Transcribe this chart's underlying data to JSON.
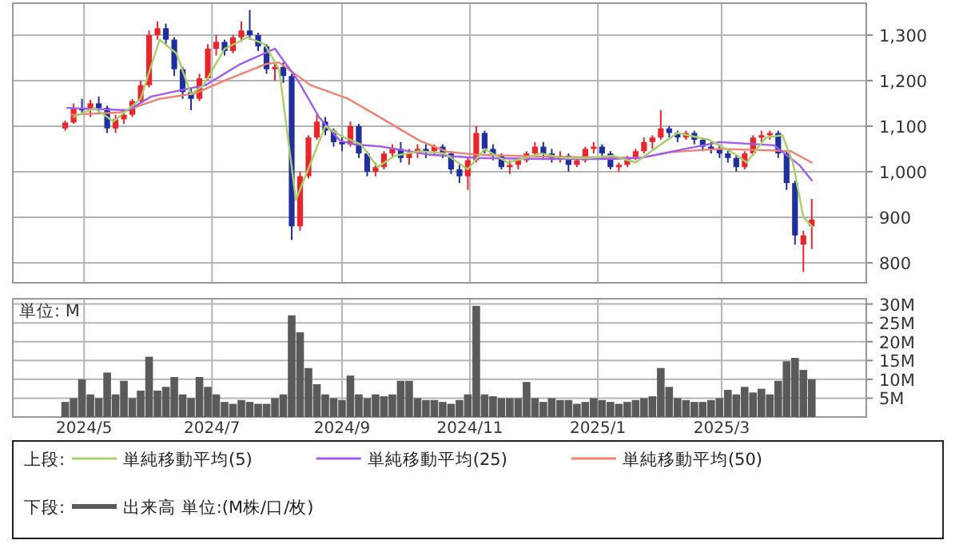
{
  "chart_data": [
    {
      "type": "candlestick",
      "grid": true,
      "legend": "bottom",
      "legend_title": "上段:",
      "tick_labels": "y",
      "xlim": [
        "2024-03-28",
        "2025-05-09"
      ],
      "xticks": [
        {
          "value": "2024-05-01",
          "label": null
        },
        {
          "value": "2024-07-01",
          "label": null
        },
        {
          "value": "2024-09-01",
          "label": null
        },
        {
          "value": "2024-11-01",
          "label": null
        },
        {
          "value": "2025-01-01",
          "label": null
        },
        {
          "value": "2025-03-01",
          "label": null
        }
      ],
      "ylim": [
        756,
        1370
      ],
      "yticks": [
        {
          "value": 800,
          "label": "800"
        },
        {
          "value": 900,
          "label": "900"
        },
        {
          "value": 1000,
          "label": "1,000"
        },
        {
          "value": 1100,
          "label": "1,100"
        },
        {
          "value": 1200,
          "label": "1,200"
        },
        {
          "value": 1300,
          "label": "1,300"
        }
      ],
      "x": [
        "2024-04-22",
        "2024-04-26",
        "2024-04-30",
        "2024-05-04",
        "2024-05-08",
        "2024-05-12",
        "2024-05-16",
        "2024-05-20",
        "2024-05-24",
        "2024-05-28",
        "2024-06-01",
        "2024-06-05",
        "2024-06-09",
        "2024-06-13",
        "2024-06-17",
        "2024-06-21",
        "2024-06-25",
        "2024-06-29",
        "2024-07-03",
        "2024-07-07",
        "2024-07-11",
        "2024-07-15",
        "2024-07-19",
        "2024-07-23",
        "2024-07-27",
        "2024-07-31",
        "2024-08-04",
        "2024-08-08",
        "2024-08-12",
        "2024-08-16",
        "2024-08-20",
        "2024-08-24",
        "2024-08-28",
        "2024-09-01",
        "2024-09-05",
        "2024-09-09",
        "2024-09-13",
        "2024-09-17",
        "2024-09-21",
        "2024-09-25",
        "2024-09-29",
        "2024-10-03",
        "2024-10-07",
        "2024-10-11",
        "2024-10-15",
        "2024-10-19",
        "2024-10-23",
        "2024-10-27",
        "2024-10-31",
        "2024-11-04",
        "2024-11-08",
        "2024-11-12",
        "2024-11-16",
        "2024-11-20",
        "2024-11-24",
        "2024-11-28",
        "2024-12-02",
        "2024-12-06",
        "2024-12-10",
        "2024-12-14",
        "2024-12-18",
        "2024-12-22",
        "2024-12-26",
        "2024-12-30",
        "2025-01-03",
        "2025-01-07",
        "2025-01-11",
        "2025-01-15",
        "2025-01-19",
        "2025-01-23",
        "2025-01-27",
        "2025-01-31",
        "2025-02-04",
        "2025-02-08",
        "2025-02-12",
        "2025-02-16",
        "2025-02-20",
        "2025-02-24",
        "2025-02-28",
        "2025-03-04",
        "2025-03-08",
        "2025-03-12",
        "2025-03-16",
        "2025-03-20",
        "2025-03-24",
        "2025-03-28",
        "2025-04-01",
        "2025-04-05",
        "2025-04-09",
        "2025-04-13"
      ],
      "ohlc": [
        [
          1095,
          1112,
          1090,
          1108
        ],
        [
          1108,
          1150,
          1105,
          1140
        ],
        [
          1140,
          1160,
          1125,
          1135
        ],
        [
          1135,
          1158,
          1120,
          1150
        ],
        [
          1150,
          1165,
          1130,
          1140
        ],
        [
          1140,
          1145,
          1085,
          1095
        ],
        [
          1095,
          1125,
          1085,
          1115
        ],
        [
          1115,
          1135,
          1105,
          1125
        ],
        [
          1125,
          1160,
          1120,
          1155
        ],
        [
          1155,
          1200,
          1150,
          1190
        ],
        [
          1190,
          1310,
          1185,
          1300
        ],
        [
          1300,
          1330,
          1290,
          1315
        ],
        [
          1315,
          1325,
          1280,
          1290
        ],
        [
          1290,
          1295,
          1210,
          1225
        ],
        [
          1225,
          1230,
          1160,
          1175
        ],
        [
          1175,
          1185,
          1135,
          1160
        ],
        [
          1160,
          1215,
          1155,
          1205
        ],
        [
          1205,
          1280,
          1200,
          1270
        ],
        [
          1270,
          1300,
          1255,
          1285
        ],
        [
          1285,
          1290,
          1255,
          1265
        ],
        [
          1265,
          1300,
          1260,
          1295
        ],
        [
          1295,
          1330,
          1285,
          1310
        ],
        [
          1310,
          1355,
          1290,
          1300
        ],
        [
          1300,
          1305,
          1265,
          1275
        ],
        [
          1275,
          1280,
          1215,
          1225
        ],
        [
          1225,
          1240,
          1200,
          1230
        ],
        [
          1230,
          1240,
          1195,
          1210
        ],
        [
          1210,
          1215,
          850,
          880
        ],
        [
          880,
          1000,
          870,
          990
        ],
        [
          990,
          1080,
          985,
          1075
        ],
        [
          1075,
          1125,
          1070,
          1110
        ],
        [
          1110,
          1120,
          1080,
          1090
        ],
        [
          1090,
          1095,
          1055,
          1065
        ],
        [
          1065,
          1080,
          1045,
          1060
        ],
        [
          1060,
          1110,
          1055,
          1100
        ],
        [
          1100,
          1105,
          1030,
          1040
        ],
        [
          1040,
          1045,
          990,
          1000
        ],
        [
          1000,
          1020,
          990,
          1010
        ],
        [
          1010,
          1045,
          1005,
          1040
        ],
        [
          1040,
          1060,
          1030,
          1050
        ],
        [
          1050,
          1065,
          1020,
          1030
        ],
        [
          1030,
          1050,
          1015,
          1040
        ],
        [
          1040,
          1060,
          1030,
          1050
        ],
        [
          1050,
          1060,
          1030,
          1045
        ],
        [
          1045,
          1060,
          1035,
          1055
        ],
        [
          1055,
          1060,
          1030,
          1040
        ],
        [
          1040,
          1045,
          995,
          1005
        ],
        [
          1005,
          1015,
          975,
          990
        ],
        [
          990,
          1030,
          960,
          1025
        ],
        [
          1025,
          1100,
          1020,
          1085
        ],
        [
          1085,
          1090,
          1040,
          1050
        ],
        [
          1050,
          1060,
          1025,
          1035
        ],
        [
          1035,
          1040,
          1005,
          1010
        ],
        [
          1010,
          1025,
          995,
          1015
        ],
        [
          1015,
          1030,
          1005,
          1025
        ],
        [
          1025,
          1045,
          1020,
          1040
        ],
        [
          1040,
          1065,
          1035,
          1055
        ],
        [
          1055,
          1065,
          1030,
          1040
        ],
        [
          1040,
          1050,
          1020,
          1030
        ],
        [
          1030,
          1045,
          1020,
          1035
        ],
        [
          1035,
          1040,
          1000,
          1015
        ],
        [
          1015,
          1030,
          1010,
          1025
        ],
        [
          1025,
          1055,
          1020,
          1050
        ],
        [
          1050,
          1065,
          1040,
          1055
        ],
        [
          1055,
          1060,
          1035,
          1040
        ],
        [
          1040,
          1045,
          1005,
          1010
        ],
        [
          1010,
          1020,
          1000,
          1015
        ],
        [
          1015,
          1035,
          1010,
          1030
        ],
        [
          1030,
          1050,
          1025,
          1045
        ],
        [
          1045,
          1075,
          1040,
          1065
        ],
        [
          1065,
          1080,
          1050,
          1075
        ],
        [
          1075,
          1135,
          1070,
          1095
        ],
        [
          1095,
          1100,
          1075,
          1085
        ],
        [
          1085,
          1090,
          1065,
          1075
        ],
        [
          1075,
          1090,
          1070,
          1085
        ],
        [
          1085,
          1090,
          1060,
          1070
        ],
        [
          1070,
          1075,
          1045,
          1055
        ],
        [
          1055,
          1065,
          1040,
          1050
        ],
        [
          1050,
          1060,
          1030,
          1040
        ],
        [
          1040,
          1050,
          1020,
          1030
        ],
        [
          1030,
          1035,
          1000,
          1010
        ],
        [
          1010,
          1045,
          1005,
          1040
        ],
        [
          1040,
          1080,
          1035,
          1075
        ],
        [
          1075,
          1090,
          1065,
          1080
        ],
        [
          1080,
          1090,
          1070,
          1085
        ],
        [
          1085,
          1090,
          1030,
          1040
        ],
        [
          1040,
          1045,
          960,
          975
        ],
        [
          975,
          980,
          840,
          860
        ],
        [
          840,
          870,
          780,
          860
        ],
        [
          880,
          940,
          830,
          895
        ]
      ],
      "series": [
        {
          "name": "単純移動平均(5)",
          "type": "line",
          "color": "#a8d06a",
          "x": [
            "2024-04-26",
            "2024-05-06",
            "2024-05-15",
            "2024-05-28",
            "2024-06-06",
            "2024-06-14",
            "2024-06-21",
            "2024-06-27",
            "2024-07-07",
            "2024-07-18",
            "2024-07-26",
            "2024-08-02",
            "2024-08-10",
            "2024-08-18",
            "2024-08-24",
            "2024-09-02",
            "2024-09-10",
            "2024-09-18",
            "2024-09-26",
            "2024-10-08",
            "2024-10-20",
            "2024-10-31",
            "2024-11-08",
            "2024-11-19",
            "2024-12-05",
            "2024-12-16",
            "2024-12-28",
            "2025-01-08",
            "2025-01-19",
            "2025-01-31",
            "2025-02-08",
            "2025-02-23",
            "2025-03-07",
            "2025-03-13",
            "2025-03-22",
            "2025-03-30",
            "2025-04-04",
            "2025-04-09",
            "2025-04-13"
          ],
          "values": [
            1120,
            1140,
            1110,
            1160,
            1290,
            1260,
            1170,
            1190,
            1270,
            1295,
            1280,
            1225,
            938,
            1030,
            1100,
            1075,
            1060,
            1010,
            1035,
            1045,
            1040,
            1005,
            1050,
            1020,
            1040,
            1030,
            1030,
            1035,
            1020,
            1060,
            1085,
            1070,
            1040,
            1020,
            1075,
            1080,
            1020,
            900,
            880
          ]
        },
        {
          "name": "単純移動平均(25)",
          "type": "line",
          "color": "#a05cf0",
          "x": [
            "2024-04-23",
            "2024-05-22",
            "2024-06-02",
            "2024-06-17",
            "2024-06-28",
            "2024-07-14",
            "2024-07-31",
            "2024-08-11",
            "2024-08-21",
            "2024-08-31",
            "2024-09-07",
            "2024-09-20",
            "2024-10-13",
            "2024-11-05",
            "2024-12-06",
            "2025-01-06",
            "2025-01-21",
            "2025-02-05",
            "2025-02-28",
            "2025-03-15",
            "2025-03-26",
            "2025-04-07",
            "2025-04-13"
          ],
          "values": [
            1140,
            1135,
            1165,
            1180,
            1190,
            1235,
            1270,
            1200,
            1120,
            1068,
            1060,
            1055,
            1037,
            1030,
            1028,
            1028,
            1030,
            1044,
            1065,
            1061,
            1058,
            1015,
            981
          ]
        },
        {
          "name": "単純移動平均(50)",
          "type": "line",
          "color": "#f08070",
          "x": [
            "2024-04-25",
            "2024-05-18",
            "2024-06-06",
            "2024-06-23",
            "2024-07-07",
            "2024-07-27",
            "2024-08-02",
            "2024-08-17",
            "2024-09-04",
            "2024-09-17",
            "2024-10-08",
            "2024-10-21",
            "2024-11-05",
            "2024-12-06",
            "2025-01-21",
            "2025-02-05",
            "2025-02-28",
            "2025-03-23",
            "2025-04-03",
            "2025-04-13"
          ],
          "values": [
            1125,
            1130,
            1160,
            1172,
            1200,
            1237,
            1240,
            1190,
            1160,
            1125,
            1068,
            1044,
            1037,
            1033,
            1030,
            1043,
            1050,
            1047,
            1045,
            1020
          ]
        }
      ]
    },
    {
      "type": "bar",
      "grid": true,
      "legend": "bottom",
      "legend_title": "下段:",
      "annotations": [
        "単位: M"
      ],
      "xlim": [
        "2024-03-28",
        "2025-05-09"
      ],
      "xticks": [
        {
          "value": "2024-05-01",
          "label": "2024/5"
        },
        {
          "value": "2024-07-01",
          "label": "2024/7"
        },
        {
          "value": "2024-09-01",
          "label": "2024/9"
        },
        {
          "value": "2024-11-01",
          "label": "2024/11"
        },
        {
          "value": "2025-01-01",
          "label": "2025/1"
        },
        {
          "value": "2025-03-01",
          "label": "2025/3"
        }
      ],
      "ylim": [
        0,
        31.4
      ],
      "yticks": [
        {
          "value": 5,
          "label": "5M"
        },
        {
          "value": 10,
          "label": "10M"
        },
        {
          "value": 15,
          "label": "15M"
        },
        {
          "value": 20,
          "label": "20M"
        },
        {
          "value": 25,
          "label": "25M"
        },
        {
          "value": 30,
          "label": "30M"
        }
      ],
      "x": [
        "2024-04-22",
        "2024-04-26",
        "2024-04-30",
        "2024-05-04",
        "2024-05-08",
        "2024-05-12",
        "2024-05-16",
        "2024-05-20",
        "2024-05-24",
        "2024-05-28",
        "2024-06-01",
        "2024-06-05",
        "2024-06-09",
        "2024-06-13",
        "2024-06-17",
        "2024-06-21",
        "2024-06-25",
        "2024-06-29",
        "2024-07-03",
        "2024-07-07",
        "2024-07-11",
        "2024-07-15",
        "2024-07-19",
        "2024-07-23",
        "2024-07-27",
        "2024-07-31",
        "2024-08-04",
        "2024-08-08",
        "2024-08-12",
        "2024-08-16",
        "2024-08-20",
        "2024-08-24",
        "2024-08-28",
        "2024-09-01",
        "2024-09-05",
        "2024-09-09",
        "2024-09-13",
        "2024-09-17",
        "2024-09-21",
        "2024-09-25",
        "2024-09-29",
        "2024-10-03",
        "2024-10-07",
        "2024-10-11",
        "2024-10-15",
        "2024-10-19",
        "2024-10-23",
        "2024-10-27",
        "2024-10-31",
        "2024-11-04",
        "2024-11-08",
        "2024-11-12",
        "2024-11-16",
        "2024-11-20",
        "2024-11-24",
        "2024-11-28",
        "2024-12-02",
        "2024-12-06",
        "2024-12-10",
        "2024-12-14",
        "2024-12-18",
        "2024-12-22",
        "2024-12-26",
        "2024-12-30",
        "2025-01-03",
        "2025-01-07",
        "2025-01-11",
        "2025-01-15",
        "2025-01-19",
        "2025-01-23",
        "2025-01-27",
        "2025-01-31",
        "2025-02-04",
        "2025-02-08",
        "2025-02-12",
        "2025-02-16",
        "2025-02-20",
        "2025-02-24",
        "2025-02-28",
        "2025-03-04",
        "2025-03-08",
        "2025-03-12",
        "2025-03-16",
        "2025-03-20",
        "2025-03-24",
        "2025-03-28",
        "2025-04-01",
        "2025-04-05",
        "2025-04-09",
        "2025-04-13"
      ],
      "series": [
        {
          "name": "出来高 単位:(M株/口/枚)",
          "color": "#5a5a5a",
          "values": [
            4,
            5,
            10,
            6,
            5,
            11.8,
            6,
            9.6,
            5,
            7,
            16,
            7,
            8,
            10.6,
            6,
            5,
            10.6,
            8,
            6,
            4,
            3.5,
            4.5,
            4,
            3.5,
            3.5,
            5,
            6,
            27,
            22.5,
            13,
            8.7,
            6,
            5,
            4.5,
            11,
            6,
            5,
            6,
            5.5,
            6,
            9.6,
            9.6,
            5,
            4.5,
            4.5,
            4,
            3.5,
            4.5,
            6,
            29.5,
            6,
            5.5,
            5,
            5,
            5,
            9.3,
            5,
            4,
            5,
            4.5,
            4.5,
            3.5,
            4,
            5,
            4.5,
            4,
            3.5,
            4,
            4.5,
            5,
            5.5,
            13,
            8,
            5,
            4.5,
            4,
            4,
            4.5,
            5,
            7.2,
            6,
            8,
            6.5,
            7.5,
            6,
            9.6,
            14.8,
            15.7,
            12.5,
            10
          ]
        }
      ]
    }
  ]
}
